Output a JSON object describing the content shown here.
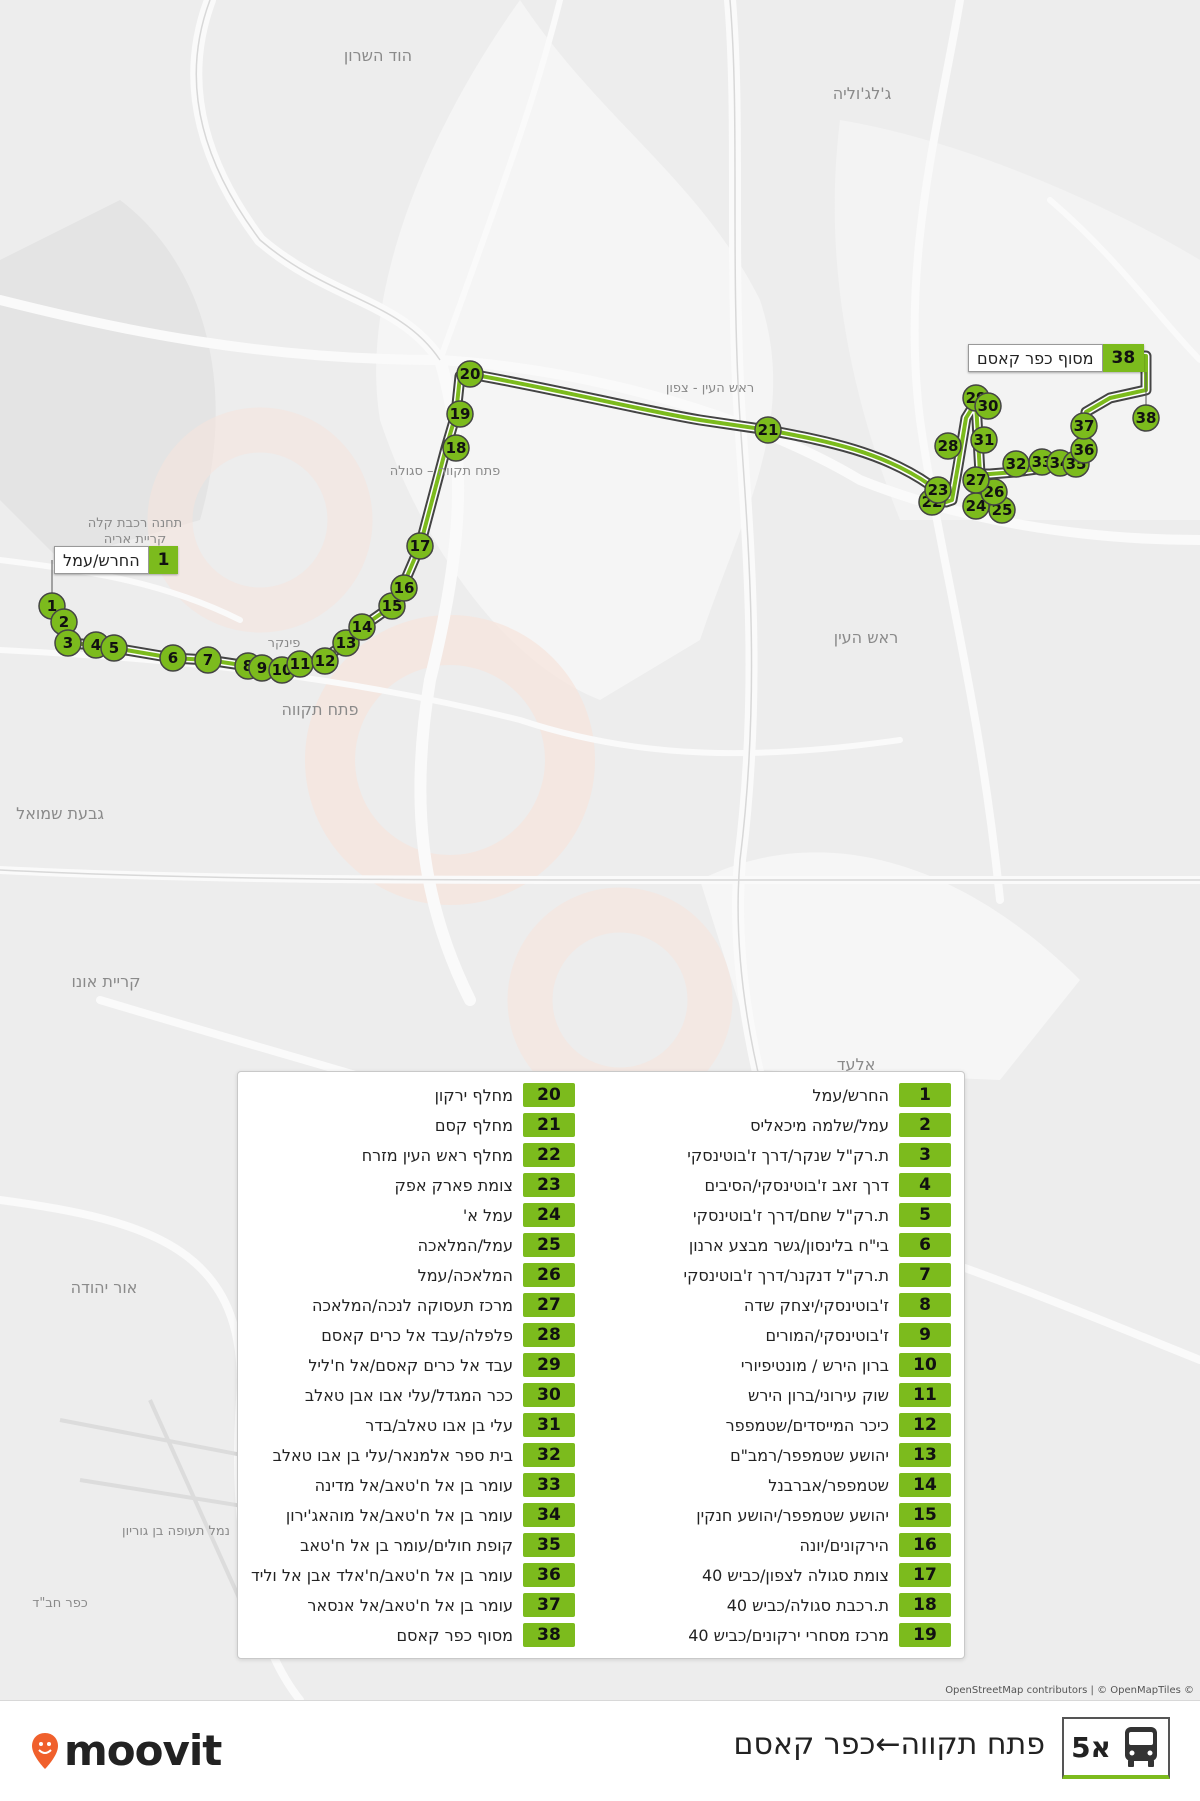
{
  "route": {
    "number": "5א",
    "title": "פתח תקווה←כפר קאסם",
    "line_color": "#7cbb1d"
  },
  "brand": {
    "name": "moovit",
    "icon": "location-pin-icon",
    "color": "#f0602c"
  },
  "attribution": "OpenStreetMap contributors | © OpenMapTiles ©",
  "places": [
    {
      "name": "הוד השרון"
    },
    {
      "name": "ג'לג'וליה"
    },
    {
      "name": "ראש העין - צפון"
    },
    {
      "name": "פתח תקווה – סגולה"
    },
    {
      "name": "תחנה רכבת קלה"
    },
    {
      "name": "קריית אריה"
    },
    {
      "name": "ראש העין"
    },
    {
      "name": "פתח תקווה"
    },
    {
      "name": "גבעת שמואל"
    },
    {
      "name": "קריית אונו"
    },
    {
      "name": "אור יהודה"
    },
    {
      "name": "אלעד"
    },
    {
      "name": "נמל תעופה בן גוריון"
    },
    {
      "name": "כפר חב\"ד"
    },
    {
      "name": "פינקר"
    }
  ],
  "endpoints": {
    "start": {
      "number": "1",
      "label": "החרש/עמל"
    },
    "end": {
      "number": "38",
      "label": "מסוף כפר קאסם"
    }
  },
  "stops": [
    {
      "number": "1",
      "name": "החרש/עמל"
    },
    {
      "number": "2",
      "name": "עמל/שלמה מיכאליס"
    },
    {
      "number": "3",
      "name": "ת.רק\"ל שנקר/דרך ז'בוטינסקי"
    },
    {
      "number": "4",
      "name": "דרך זאב ז'בוטינסקי/הסיבים"
    },
    {
      "number": "5",
      "name": "ת.רק\"ל שחם/דרך ז'בוטינסקי"
    },
    {
      "number": "6",
      "name": "בי\"ח בלינסון/גשר מבצע ארנון"
    },
    {
      "number": "7",
      "name": "ת.רק\"ל דנקנר/דרך ז'בוטינסקי"
    },
    {
      "number": "8",
      "name": "ז'בוטינסקי/יצחק שדה"
    },
    {
      "number": "9",
      "name": "ז'בוטינסקי/המורים"
    },
    {
      "number": "10",
      "name": "ברון הירש / מונטיפיורי"
    },
    {
      "number": "11",
      "name": "שוק עירוני/ברון הירש"
    },
    {
      "number": "12",
      "name": "כיכר המייסדים/שטמפפר"
    },
    {
      "number": "13",
      "name": "יהושע שטמפפר/רמב\"ם"
    },
    {
      "number": "14",
      "name": "שטמפפר/אברבנל"
    },
    {
      "number": "15",
      "name": "יהושע שטמפפר/יהושע חנקין"
    },
    {
      "number": "16",
      "name": "הירקונים/יונה"
    },
    {
      "number": "17",
      "name": "צומת סגולה לצפון/כביש 40"
    },
    {
      "number": "18",
      "name": "ת.רכבת סגולה/כביש 40"
    },
    {
      "number": "19",
      "name": "מרכז מסחרי ירקונים/כביש 40"
    },
    {
      "number": "20",
      "name": "מחלף ירקון"
    },
    {
      "number": "21",
      "name": "מחלף קסם"
    },
    {
      "number": "22",
      "name": "מחלף ראש העין מזרח"
    },
    {
      "number": "23",
      "name": "צומת פארק אפק"
    },
    {
      "number": "24",
      "name": "עמל א'"
    },
    {
      "number": "25",
      "name": "עמל/המלאכה"
    },
    {
      "number": "26",
      "name": "המלאכה/עמל"
    },
    {
      "number": "27",
      "name": "מרכז תעסוקה לנכה/המלאכה"
    },
    {
      "number": "28",
      "name": "פלפלה/עבד אל כרים קאסם"
    },
    {
      "number": "29",
      "name": "עבד אל כרים קאסם/אל ח'ליל"
    },
    {
      "number": "30",
      "name": "ככר המגדל/עלי אבו אבן טאלב"
    },
    {
      "number": "31",
      "name": "עלי בן אבו טאלב/בדר"
    },
    {
      "number": "32",
      "name": "בית ספר אלמנאר/עלי בן אבו טאלב"
    },
    {
      "number": "33",
      "name": "עומר בן אל ח'טאב/אל מדינה"
    },
    {
      "number": "34",
      "name": "עומר בן אל ח'טאב/אל מוהאג'ירון"
    },
    {
      "number": "35",
      "name": "קופת חולים/עומר בן אל ח'טאב"
    },
    {
      "number": "36",
      "name": "עומר בן אל ח'טאב/ח'אלד אבן אל וליד"
    },
    {
      "number": "37",
      "name": "עומר בן אל ח'טאב/אל אנסאר"
    },
    {
      "number": "38",
      "name": "מסוף כפר קאסם"
    }
  ]
}
